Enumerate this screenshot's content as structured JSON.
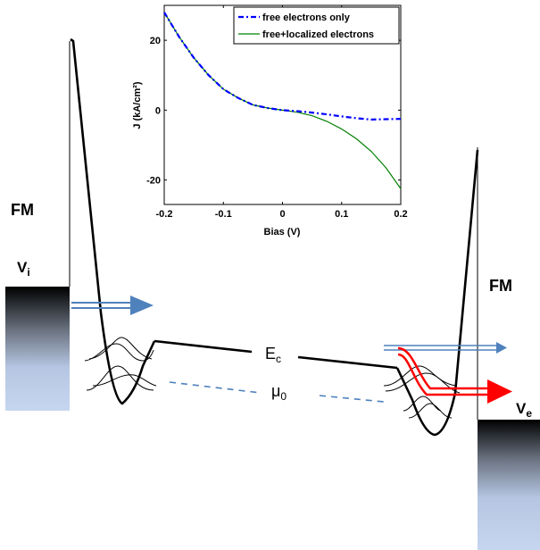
{
  "diagram": {
    "left_electrode": {
      "label": "FM",
      "voltage_label": "V",
      "voltage_sub": "i"
    },
    "right_electrode": {
      "label": "FM",
      "voltage_label": "V",
      "voltage_sub": "e"
    },
    "conduction_band": {
      "label": "E",
      "sub": "c"
    },
    "chemical_potential": {
      "label": "μ",
      "sub": "0"
    },
    "colors": {
      "band_edge": "#000000",
      "arrow_blue": "#4f81bd",
      "arrow_red": "#ff0000",
      "mu_line": "#4f81bd"
    }
  },
  "chart_data": {
    "type": "line",
    "xlabel": "Bias (V)",
    "ylabel": "J (kA/cm²)",
    "xlim": [
      -0.2,
      0.2
    ],
    "ylim": [
      -27,
      30
    ],
    "xticks": [
      "-0.2",
      "-0.1",
      "0",
      "0.1",
      "0.2"
    ],
    "yticks": [
      "20",
      "0",
      "-20"
    ],
    "legend_position": "top-right",
    "series": [
      {
        "name": "free electrons only",
        "color": "#0000ff",
        "style": "dash-dot",
        "x": [
          -0.2,
          -0.175,
          -0.15,
          -0.125,
          -0.1,
          -0.075,
          -0.05,
          -0.025,
          0,
          0.025,
          0.05,
          0.075,
          0.1,
          0.125,
          0.15,
          0.175,
          0.2
        ],
        "y": [
          28,
          21,
          15,
          10,
          6,
          3.5,
          1.5,
          0.6,
          0,
          -0.3,
          -0.7,
          -1.2,
          -1.8,
          -2.3,
          -2.7,
          -2.6,
          -2.5
        ]
      },
      {
        "name": "free+localized electrons",
        "color": "#008000",
        "style": "solid",
        "x": [
          -0.2,
          -0.175,
          -0.15,
          -0.125,
          -0.1,
          -0.075,
          -0.05,
          -0.025,
          0,
          0.025,
          0.05,
          0.075,
          0.1,
          0.125,
          0.15,
          0.175,
          0.2
        ],
        "y": [
          28,
          21,
          15,
          10,
          6,
          3.5,
          1.5,
          0.6,
          0,
          -0.6,
          -1.6,
          -3.2,
          -5.4,
          -8.2,
          -11.8,
          -16.5,
          -22.5
        ]
      }
    ]
  }
}
